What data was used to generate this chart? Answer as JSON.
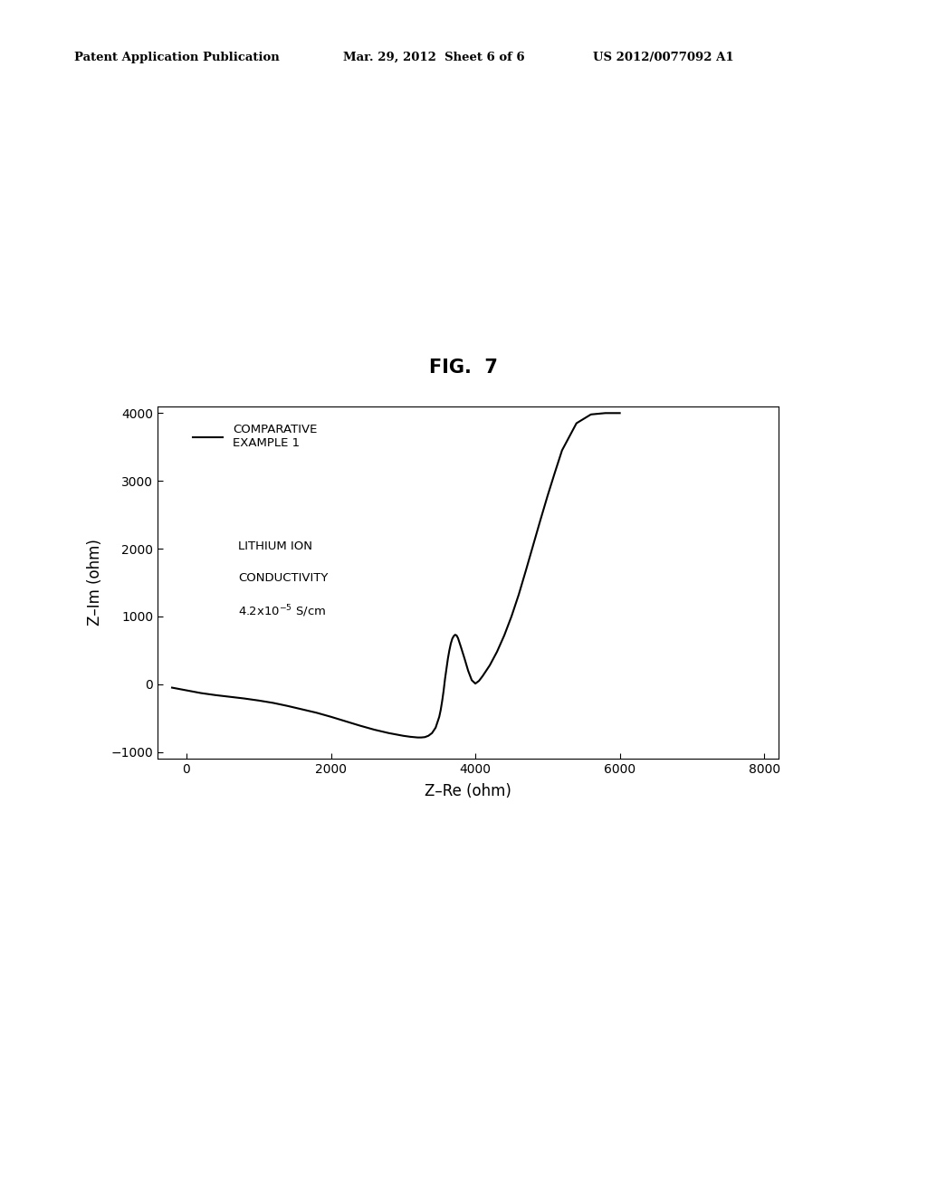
{
  "title": "FIG.  7",
  "xlabel": "Z–Re (ohm)",
  "ylabel": "Z–Im (ohm)",
  "xlim": [
    -400,
    8200
  ],
  "ylim": [
    -1100,
    4100
  ],
  "xticks": [
    0,
    2000,
    4000,
    6000,
    8000
  ],
  "yticks": [
    -1000,
    0,
    1000,
    2000,
    3000,
    4000
  ],
  "legend_label": "COMPARATIVE\nEXAMPLE 1",
  "annotation_line1": "LITHIUM ION",
  "annotation_line2": "CONDUCTIVITY",
  "annotation_line3": "4.2x10⁻⁵ S/cm",
  "header_left": "Patent Application Publication",
  "header_mid": "Mar. 29, 2012  Sheet 6 of 6",
  "header_right": "US 2012/0077092 A1",
  "line_color": "#000000",
  "background_color": "#ffffff",
  "curve_x": [
    -200,
    -100,
    0,
    100,
    200,
    400,
    600,
    800,
    1000,
    1200,
    1400,
    1600,
    1800,
    2000,
    2200,
    2400,
    2600,
    2800,
    3000,
    3100,
    3150,
    3200,
    3250,
    3300,
    3350,
    3400,
    3450,
    3500,
    3520,
    3540,
    3560,
    3580,
    3600,
    3620,
    3640,
    3660,
    3680,
    3700,
    3720,
    3740,
    3760,
    3800,
    3850,
    3900,
    3950,
    4000,
    4050,
    4100,
    4200,
    4300,
    4400,
    4500,
    4600,
    4700,
    4800,
    4900,
    5000,
    5100,
    5200,
    5400,
    5600,
    5800,
    6000
  ],
  "curve_y": [
    -50,
    -70,
    -90,
    -110,
    -130,
    -160,
    -185,
    -210,
    -240,
    -275,
    -320,
    -370,
    -420,
    -480,
    -545,
    -610,
    -670,
    -720,
    -760,
    -775,
    -780,
    -785,
    -785,
    -780,
    -760,
    -720,
    -640,
    -480,
    -380,
    -250,
    -100,
    80,
    230,
    380,
    500,
    600,
    670,
    710,
    730,
    720,
    680,
    550,
    380,
    200,
    60,
    10,
    50,
    120,
    280,
    480,
    720,
    1000,
    1320,
    1680,
    2050,
    2420,
    2780,
    3120,
    3450,
    3850,
    3980,
    4000,
    4000
  ]
}
